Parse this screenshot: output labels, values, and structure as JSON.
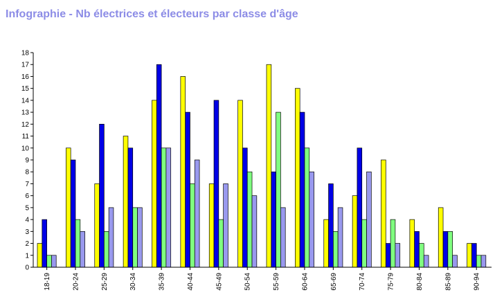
{
  "chart_data": {
    "type": "bar",
    "title": "Infographie - Nb électrices et électeurs par classe d'âge",
    "categories": [
      "18-19",
      "20-24",
      "25-29",
      "30-34",
      "35-39",
      "40-44",
      "45-49",
      "50-54",
      "55-59",
      "60-64",
      "65-69",
      "70-74",
      "75-79",
      "80-84",
      "85-89",
      "90-94"
    ],
    "series": [
      {
        "color": "#ffff00",
        "values": [
          2,
          10,
          7,
          11,
          14,
          16,
          7,
          14,
          17,
          15,
          4,
          6,
          9,
          4,
          5,
          2
        ]
      },
      {
        "color": "#0000e6",
        "values": [
          4,
          9,
          12,
          10,
          17,
          13,
          14,
          10,
          8,
          13,
          7,
          10,
          2,
          3,
          3,
          2
        ]
      },
      {
        "color": "#80ff80",
        "values": [
          1,
          4,
          3,
          5,
          10,
          7,
          4,
          8,
          13,
          10,
          3,
          4,
          4,
          2,
          3,
          1
        ]
      },
      {
        "color": "#9999ee",
        "values": [
          1,
          3,
          5,
          5,
          10,
          9,
          7,
          6,
          5,
          8,
          5,
          8,
          2,
          1,
          1,
          1
        ]
      }
    ],
    "ylim": [
      0,
      18
    ],
    "yticks": [
      0,
      1,
      2,
      3,
      4,
      5,
      6,
      7,
      8,
      9,
      10,
      11,
      12,
      13,
      14,
      15,
      16,
      17,
      18
    ],
    "grid": false,
    "legend": "none"
  }
}
